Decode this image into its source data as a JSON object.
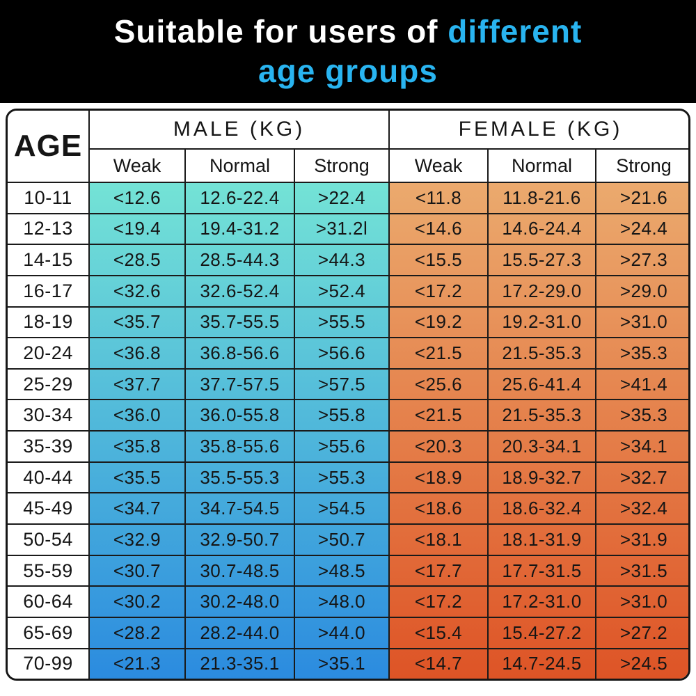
{
  "title": {
    "line1_white": "Suitable for users of",
    "line1_blue": "different",
    "line2_blue": "age groups"
  },
  "colors": {
    "accent_blue": "#29b4f0",
    "banner_bg": "#000000",
    "male_gradient_top": "#74e3d6",
    "male_gradient_bottom": "#2b8bdf",
    "female_gradient_top": "#ebaa6e",
    "female_gradient_bottom": "#de5426",
    "border": "#1a1a1a"
  },
  "table": {
    "age_header": "AGE",
    "male_header": "MALE (KG)",
    "female_header": "FEMALE (KG)",
    "sub_headers": {
      "weak": "Weak",
      "normal": "Normal",
      "strong": "Strong"
    }
  },
  "chart_data": {
    "type": "table",
    "title": "Suitable for users of different age groups",
    "columns": [
      "AGE",
      "MALE Weak",
      "MALE Normal",
      "MALE Strong",
      "FEMALE Weak",
      "FEMALE Normal",
      "FEMALE Strong"
    ],
    "rows": [
      [
        "10-11",
        "<12.6",
        "12.6-22.4",
        ">22.4",
        "<11.8",
        "11.8-21.6",
        ">21.6"
      ],
      [
        "12-13",
        "<19.4",
        "19.4-31.2",
        ">31.2l",
        "<14.6",
        "14.6-24.4",
        ">24.4"
      ],
      [
        "14-15",
        "<28.5",
        "28.5-44.3",
        ">44.3",
        "<15.5",
        "15.5-27.3",
        ">27.3"
      ],
      [
        "16-17",
        "<32.6",
        "32.6-52.4",
        ">52.4",
        "<17.2",
        "17.2-29.0",
        ">29.0"
      ],
      [
        "18-19",
        "<35.7",
        "35.7-55.5",
        ">55.5",
        "<19.2",
        "19.2-31.0",
        ">31.0"
      ],
      [
        "20-24",
        "<36.8",
        "36.8-56.6",
        ">56.6",
        "<21.5",
        "21.5-35.3",
        ">35.3"
      ],
      [
        "25-29",
        "<37.7",
        "37.7-57.5",
        ">57.5",
        "<25.6",
        "25.6-41.4",
        ">41.4"
      ],
      [
        "30-34",
        "<36.0",
        "36.0-55.8",
        ">55.8",
        "<21.5",
        "21.5-35.3",
        ">35.3"
      ],
      [
        "35-39",
        "<35.8",
        "35.8-55.6",
        ">55.6",
        "<20.3",
        "20.3-34.1",
        ">34.1"
      ],
      [
        "40-44",
        "<35.5",
        "35.5-55.3",
        ">55.3",
        "<18.9",
        "18.9-32.7",
        ">32.7"
      ],
      [
        "45-49",
        "<34.7",
        "34.7-54.5",
        ">54.5",
        "<18.6",
        "18.6-32.4",
        ">32.4"
      ],
      [
        "50-54",
        "<32.9",
        "32.9-50.7",
        ">50.7",
        "<18.1",
        "18.1-31.9",
        ">31.9"
      ],
      [
        "55-59",
        "<30.7",
        "30.7-48.5",
        ">48.5",
        "<17.7",
        "17.7-31.5",
        ">31.5"
      ],
      [
        "60-64",
        "<30.2",
        "30.2-48.0",
        ">48.0",
        "<17.2",
        "17.2-31.0",
        ">31.0"
      ],
      [
        "65-69",
        "<28.2",
        "28.2-44.0",
        ">44.0",
        "<15.4",
        "15.4-27.2",
        ">27.2"
      ],
      [
        "70-99",
        "<21.3",
        "21.3-35.1",
        ">35.1",
        "<14.7",
        "14.7-24.5",
        ">24.5"
      ]
    ]
  }
}
